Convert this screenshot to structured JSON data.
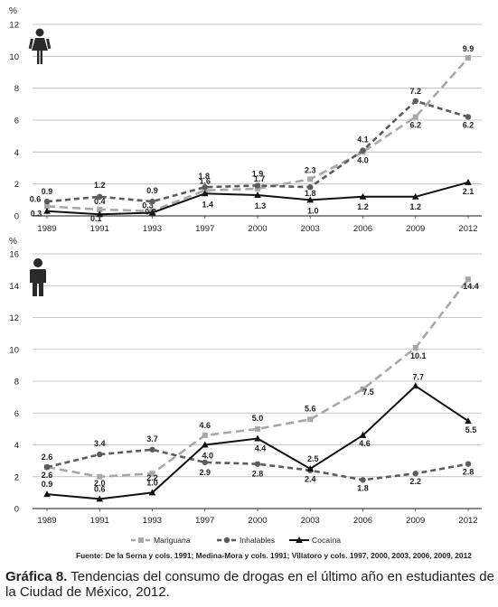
{
  "chart_data": [
    {
      "type": "line",
      "icon": "female-person-icon",
      "unit": "%",
      "categories": [
        "1989",
        "1991",
        "1993",
        "1997",
        "2000",
        "2003",
        "2006",
        "2009",
        "2012"
      ],
      "ylim": [
        0,
        12
      ],
      "yticks": [
        "0",
        "2",
        "4",
        "6",
        "8",
        "10",
        "12"
      ],
      "grid": true,
      "series": [
        {
          "name": "Mariguana",
          "values": [
            0.6,
            0.4,
            0.3,
            1.6,
            1.7,
            2.3,
            4.0,
            6.2,
            9.9
          ],
          "labels": [
            "0.6",
            "0.4",
            "0.3",
            "1.6",
            "1.7",
            "2.3",
            "4.0",
            "6.2",
            "9.9"
          ]
        },
        {
          "name": "Inhalables",
          "values": [
            0.9,
            1.2,
            0.9,
            1.8,
            1.9,
            1.8,
            4.1,
            7.2,
            6.2
          ],
          "labels": [
            "0.9",
            "1.2",
            "0.9",
            "1.8",
            "1.9",
            "1.8",
            "4.1",
            "7.2",
            "6.2"
          ]
        },
        {
          "name": "Cocaína",
          "values": [
            0.3,
            0.1,
            0.2,
            1.4,
            1.3,
            1.0,
            1.2,
            1.2,
            2.1
          ],
          "labels": [
            "0.3",
            "0.1",
            "0.2",
            "1.4",
            "1.3",
            "1.0",
            "1.2",
            "1.2",
            "2.1"
          ]
        }
      ]
    },
    {
      "type": "line",
      "icon": "male-person-icon",
      "unit": "%",
      "categories": [
        "1989",
        "1991",
        "1993",
        "1997",
        "2000",
        "2003",
        "2006",
        "2009",
        "2012"
      ],
      "ylim": [
        0,
        16
      ],
      "yticks": [
        "0",
        "2",
        "4",
        "6",
        "8",
        "10",
        "12",
        "14",
        "16"
      ],
      "grid": true,
      "legend": "bottom",
      "series": [
        {
          "name": "Mariguana",
          "values": [
            2.6,
            2.0,
            2.2,
            4.6,
            5.0,
            5.6,
            7.5,
            10.1,
            14.4
          ],
          "labels": [
            "2.6",
            "2.0",
            "2.2",
            "4.6",
            "5.0",
            "5.6",
            "7.5",
            "10.1",
            "14.4"
          ]
        },
        {
          "name": "Inhalables",
          "values": [
            2.6,
            3.4,
            3.7,
            2.9,
            2.8,
            2.4,
            1.8,
            2.2,
            2.8
          ],
          "labels": [
            "2.6",
            "3.4",
            "3.7",
            "2.9",
            "2.8",
            "2.4",
            "1.8",
            "2.2",
            "2.8"
          ]
        },
        {
          "name": "Cocaína",
          "values": [
            0.9,
            0.6,
            1.0,
            4.0,
            4.4,
            2.5,
            4.6,
            7.7,
            5.5
          ],
          "labels": [
            "0.9",
            "0.6",
            "1.0",
            "4.0",
            "4.4",
            "2.5",
            "4.6",
            "7.7",
            "5.5"
          ]
        }
      ]
    }
  ],
  "legend_labels": [
    "Mariguana",
    "Inhalables",
    "Cocaína"
  ],
  "source_note": "Fuente: De la Serna y cols. 1991; Medina-Mora y cols. 1991; Villatoro y cols. 1997, 2000, 2003, 2006, 2009, 2012",
  "caption": {
    "label": "Gráfica 8.",
    "text": "Tendencias del consumo de drogas en el último año en estudiantes de la Ciudad de México, 2012."
  }
}
